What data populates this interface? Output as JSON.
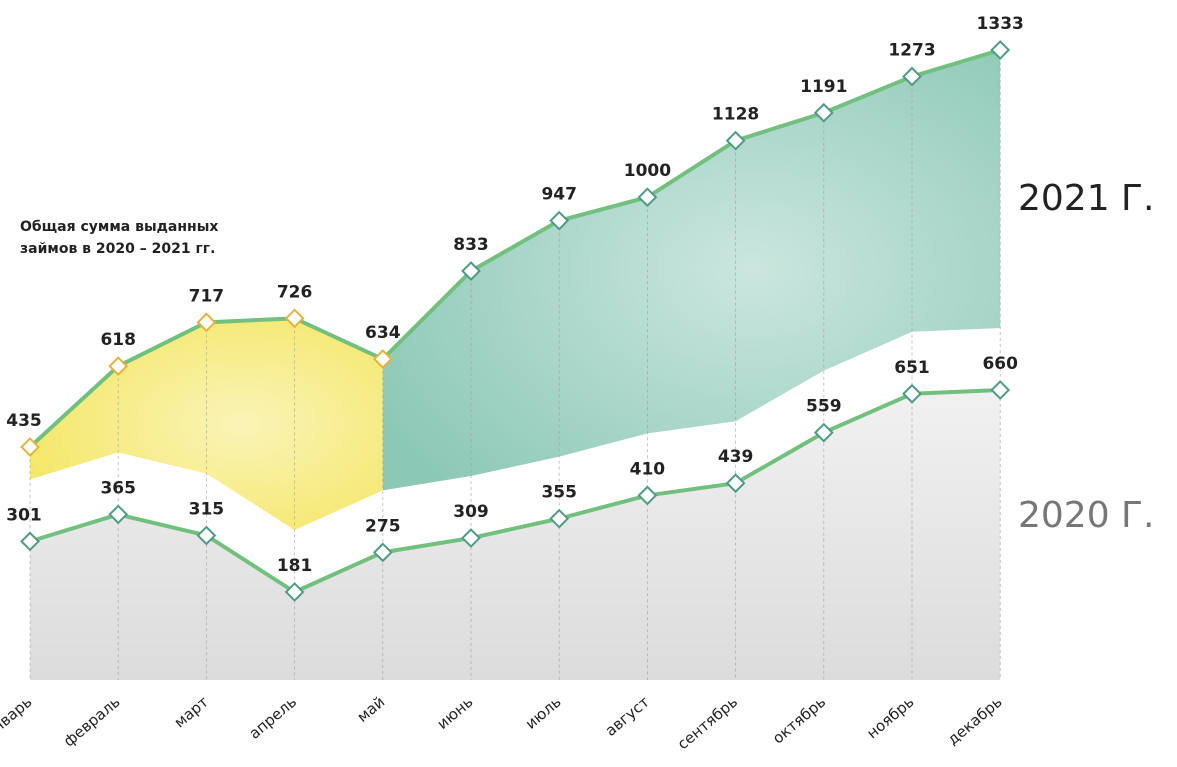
{
  "chart_data": {
    "type": "line",
    "title": "Общая сумма выданных займов в 2020 – 2021 гг.",
    "categories": [
      "январь",
      "февраль",
      "март",
      "апрель",
      "май",
      "июнь",
      "июль",
      "август",
      "сентябрь",
      "октябрь",
      "ноябрь",
      "декабрь"
    ],
    "series": [
      {
        "name": "2021 Г.",
        "color": "#72c07e",
        "values": [
          435,
          618,
          717,
          726,
          634,
          833,
          947,
          1000,
          1128,
          1191,
          1273,
          1333
        ]
      },
      {
        "name": "2020 Г.",
        "color": "#72c07e",
        "values": [
          301,
          365,
          315,
          181,
          275,
          309,
          355,
          410,
          439,
          559,
          651,
          660
        ]
      }
    ],
    "area_colors": [
      "#f4e660",
      "#8cc8b6",
      "#dcdcdc"
    ],
    "marker_colors": [
      "#e8b23a",
      "#4f9a86"
    ],
    "grid": true
  }
}
